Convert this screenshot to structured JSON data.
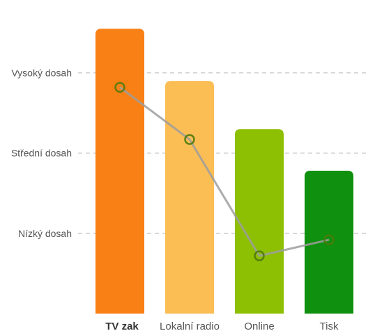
{
  "chart_data": {
    "type": "bar",
    "categories": [
      "TV zak",
      "Lokalní radio",
      "Online",
      "Tisk"
    ],
    "values": [
      3.55,
      2.9,
      2.3,
      1.78
    ],
    "colors": [
      "#f98015",
      "#fbbe55",
      "#8dbf02",
      "#0f900e"
    ],
    "active_category": "TV zak",
    "series": [
      {
        "type": "line",
        "values": [
          2.82,
          2.17,
          0.72,
          0.92
        ],
        "color": "#9e9e9e",
        "point_color": "#4c7a0c"
      }
    ],
    "y_levels": [
      {
        "label": "Nízký dosah",
        "value": 1
      },
      {
        "label": "Střední dosah",
        "value": 2
      },
      {
        "label": "Vysoký dosah",
        "value": 3
      }
    ],
    "ylim": [
      0,
      3.7
    ],
    "grid": true
  }
}
